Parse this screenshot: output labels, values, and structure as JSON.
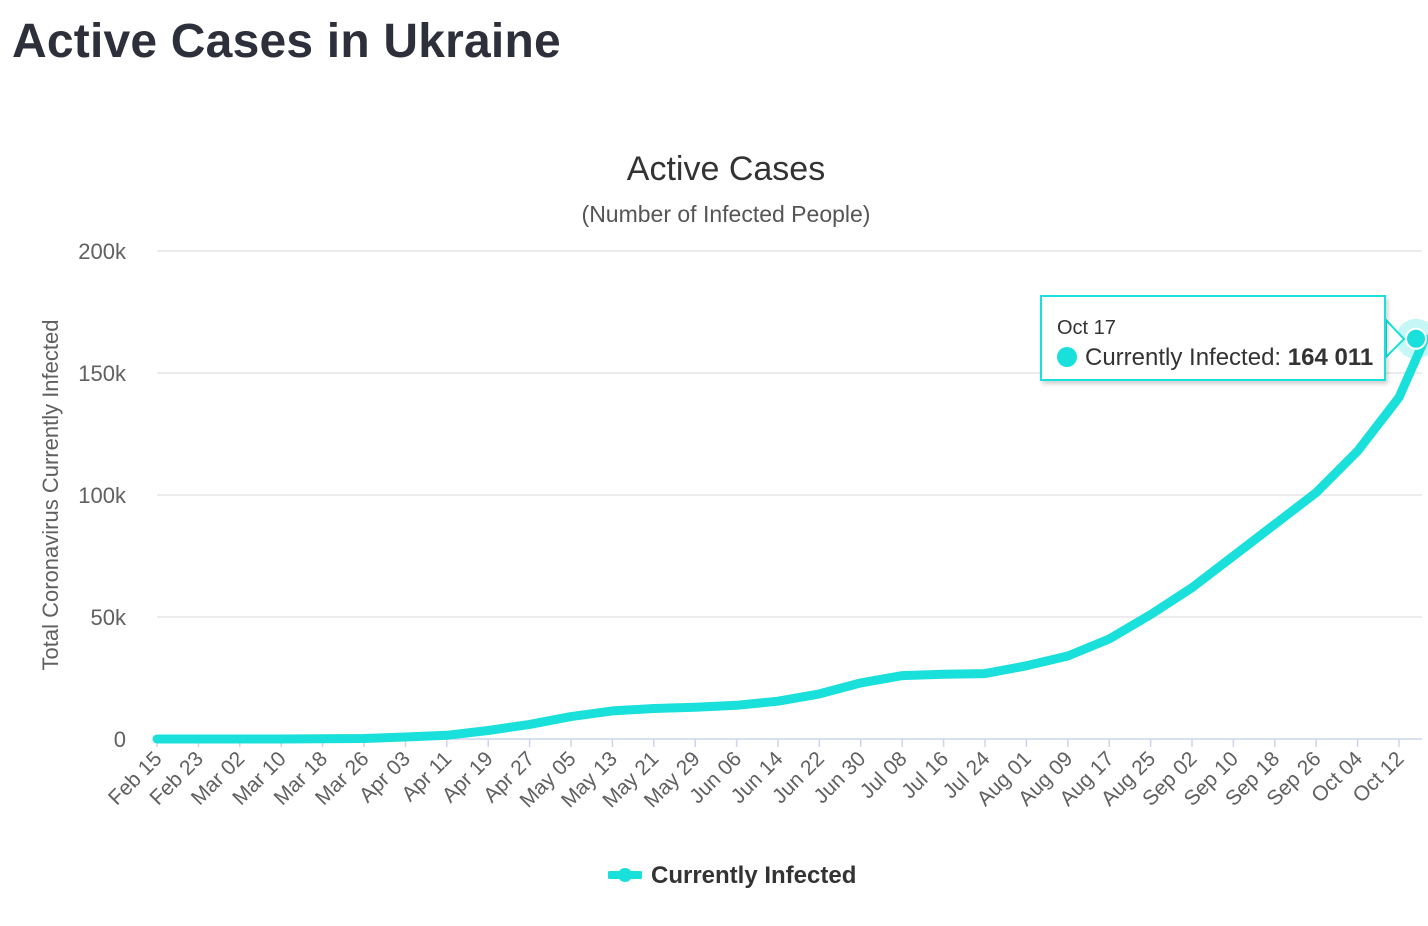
{
  "page_title": "Active Cases in Ukraine",
  "colors": {
    "series": "#19e0da",
    "grid": "#e6e6e6",
    "text": "#333333",
    "heading": "#2d2f3a"
  },
  "chart_data": {
    "type": "line",
    "title": "Active Cases",
    "subtitle": "(Number of Infected People)",
    "xlabel": "",
    "ylabel": "Total Coronavirus Currently Infected",
    "ylim": [
      0,
      200000
    ],
    "y_ticks": [
      0,
      50000,
      100000,
      150000,
      200000
    ],
    "y_tick_labels": [
      "0",
      "50k",
      "100k",
      "150k",
      "200k"
    ],
    "x_range": [
      "2020-02-15",
      "2020-10-17"
    ],
    "x_tick_labels": [
      "Feb 15",
      "Feb 23",
      "Mar 02",
      "Mar 10",
      "Mar 18",
      "Mar 26",
      "Apr 03",
      "Apr 11",
      "Apr 19",
      "Apr 27",
      "May 05",
      "May 13",
      "May 21",
      "May 29",
      "Jun 06",
      "Jun 14",
      "Jun 22",
      "Jun 30",
      "Jul 08",
      "Jul 16",
      "Jul 24",
      "Aug 01",
      "Aug 09",
      "Aug 17",
      "Aug 25",
      "Sep 02",
      "Sep 10",
      "Sep 18",
      "Sep 26",
      "Oct 04",
      "Oct 12"
    ],
    "grid": true,
    "legend": "bottom-center",
    "series": [
      {
        "name": "Currently Infected",
        "points": [
          [
            "2020-02-15",
            0
          ],
          [
            "2020-03-10",
            0
          ],
          [
            "2020-03-26",
            200
          ],
          [
            "2020-04-03",
            800
          ],
          [
            "2020-04-11",
            1500
          ],
          [
            "2020-04-19",
            3500
          ],
          [
            "2020-04-27",
            6000
          ],
          [
            "2020-05-05",
            9200
          ],
          [
            "2020-05-13",
            11500
          ],
          [
            "2020-05-21",
            12500
          ],
          [
            "2020-05-29",
            13000
          ],
          [
            "2020-06-06",
            13800
          ],
          [
            "2020-06-14",
            15500
          ],
          [
            "2020-06-22",
            18500
          ],
          [
            "2020-06-30",
            23000
          ],
          [
            "2020-07-08",
            26000
          ],
          [
            "2020-07-16",
            26500
          ],
          [
            "2020-07-24",
            26800
          ],
          [
            "2020-08-01",
            30000
          ],
          [
            "2020-08-09",
            34000
          ],
          [
            "2020-08-17",
            41000
          ],
          [
            "2020-08-25",
            51000
          ],
          [
            "2020-09-02",
            62000
          ],
          [
            "2020-09-10",
            75000
          ],
          [
            "2020-09-18",
            88000
          ],
          [
            "2020-09-26",
            101000
          ],
          [
            "2020-10-04",
            118000
          ],
          [
            "2020-10-12",
            140000
          ],
          [
            "2020-10-17",
            164011
          ]
        ]
      }
    ],
    "tooltip": {
      "date": "Oct 17",
      "series": "Currently Infected",
      "value": "164 011"
    }
  }
}
